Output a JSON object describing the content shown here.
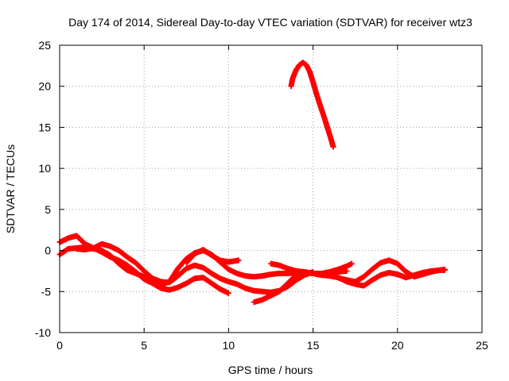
{
  "chart_data": {
    "type": "scatter",
    "title": "Day 174 of 2014, Sidereal Day-to-day VTEC variation (SDTVAR) for receiver wtz3",
    "xlabel": "GPS time / hours",
    "ylabel": "SDTVAR / TECUs",
    "xlim": [
      0,
      25
    ],
    "ylim": [
      -10,
      25
    ],
    "xticks": [
      "0",
      "5",
      "10",
      "15",
      "20",
      "25"
    ],
    "yticks": [
      "-10",
      "-5",
      "0",
      "5",
      "10",
      "15",
      "20",
      "25"
    ],
    "grid": true,
    "marker": "plus",
    "color": "#ff0000",
    "series": [
      {
        "name": "arc-1",
        "x": [
          0.0,
          0.5,
          1.0,
          1.5,
          2.0,
          2.5,
          3.0,
          3.5,
          4.0,
          4.5,
          5.0,
          5.5,
          6.0,
          6.5,
          7.0,
          7.5,
          8.0,
          8.5,
          9.0,
          9.5,
          10.0
        ],
        "y": [
          1.0,
          1.5,
          1.8,
          0.8,
          0.3,
          -0.2,
          -0.8,
          -1.2,
          -1.8,
          -2.6,
          -3.5,
          -4.0,
          -4.6,
          -4.8,
          -4.5,
          -4.0,
          -3.4,
          -3.3,
          -4.0,
          -4.7,
          -5.2
        ]
      },
      {
        "name": "arc-2",
        "x": [
          0.0,
          0.5,
          1.0,
          1.5,
          2.0,
          2.5,
          3.0,
          3.5,
          4.0,
          4.5,
          5.0,
          5.5,
          6.0,
          6.5,
          7.0,
          7.5,
          8.0,
          8.5,
          9.0,
          9.5,
          10.0,
          10.5,
          11.0,
          11.5,
          12.0,
          12.5,
          13.0,
          13.5,
          14.0,
          14.5,
          15.0,
          15.5,
          16.0,
          16.5,
          17.0
        ],
        "y": [
          -0.5,
          0.2,
          0.3,
          0.4,
          0.2,
          0.0,
          -0.6,
          -1.6,
          -2.4,
          -2.8,
          -3.2,
          -3.8,
          -4.2,
          -3.8,
          -2.2,
          -1.0,
          -0.3,
          0.0,
          -0.5,
          -1.4,
          -2.3,
          -2.8,
          -3.1,
          -3.2,
          -3.1,
          -2.9,
          -2.8,
          -2.8,
          -2.7,
          -2.7,
          -2.8,
          -2.9,
          -2.9,
          -2.6,
          -2.5
        ]
      },
      {
        "name": "arc-3",
        "x": [
          1.0,
          1.5,
          2.0,
          2.5,
          3.0,
          3.5,
          4.0,
          4.5,
          5.0,
          5.5,
          6.0,
          6.5,
          7.0,
          7.5,
          8.0,
          8.5,
          9.0,
          9.5,
          10.0,
          10.5,
          11.0,
          11.5,
          12.0,
          12.5,
          13.0,
          13.5,
          14.0,
          14.5,
          15.0
        ],
        "y": [
          0.2,
          0.1,
          0.3,
          0.8,
          0.5,
          0.0,
          -0.8,
          -1.5,
          -2.5,
          -3.4,
          -3.8,
          -3.9,
          -3.1,
          -2.2,
          -1.8,
          -2.1,
          -2.8,
          -3.4,
          -3.8,
          -4.1,
          -4.6,
          -4.9,
          -5.0,
          -5.1,
          -4.9,
          -4.4,
          -3.6,
          -3.0,
          -2.6
        ]
      },
      {
        "name": "arc-4",
        "x": [
          7.5,
          8.0,
          8.5,
          9.0,
          9.5,
          10.0,
          10.3,
          10.6
        ],
        "y": [
          -1.5,
          -0.4,
          0.1,
          -0.6,
          -1.2,
          -1.4,
          -1.3,
          -1.2
        ]
      },
      {
        "name": "arc-5",
        "x": [
          11.5,
          12.0,
          12.5,
          13.0,
          13.5,
          14.0,
          14.5,
          15.0,
          15.5,
          16.0,
          16.5,
          17.0,
          17.5,
          18.0,
          18.5,
          19.0,
          19.5,
          20.0,
          20.5,
          21.0,
          21.5,
          22.0,
          22.5,
          22.8
        ],
        "y": [
          -6.3,
          -6.0,
          -5.5,
          -5.0,
          -4.0,
          -3.0,
          -2.7,
          -2.8,
          -3.0,
          -3.1,
          -3.3,
          -3.8,
          -4.1,
          -4.3,
          -3.6,
          -3.0,
          -2.7,
          -2.9,
          -3.3,
          -3.0,
          -2.7,
          -2.5,
          -2.4,
          -2.3
        ]
      },
      {
        "name": "arc-6",
        "x": [
          12.5,
          13.0,
          13.5,
          14.0,
          14.5,
          15.0,
          15.5,
          16.0,
          16.5,
          17.0,
          17.3
        ],
        "y": [
          -1.6,
          -1.8,
          -2.2,
          -2.5,
          -2.6,
          -2.8,
          -2.8,
          -2.6,
          -2.3,
          -1.9,
          -1.6
        ]
      },
      {
        "name": "arc-7",
        "x": [
          16.2,
          16.6,
          17.0,
          17.5,
          18.0,
          18.5,
          19.0,
          19.5,
          20.0,
          20.5,
          21.0,
          21.5,
          22.0,
          22.5,
          22.8
        ],
        "y": [
          -3.1,
          -3.4,
          -3.6,
          -3.8,
          -3.2,
          -2.3,
          -1.5,
          -1.2,
          -1.6,
          -2.6,
          -3.2,
          -2.9,
          -2.6,
          -2.4,
          -2.4
        ]
      },
      {
        "name": "arc-8",
        "x": [
          13.7,
          13.8,
          14.0,
          14.2,
          14.4,
          14.6,
          14.8,
          15.0,
          15.2,
          15.4,
          15.6,
          15.8,
          16.0,
          16.2
        ],
        "y": [
          20.0,
          21.0,
          22.0,
          22.6,
          22.9,
          22.6,
          21.8,
          20.5,
          19.1,
          17.8,
          16.6,
          15.3,
          14.0,
          12.6
        ]
      }
    ]
  }
}
